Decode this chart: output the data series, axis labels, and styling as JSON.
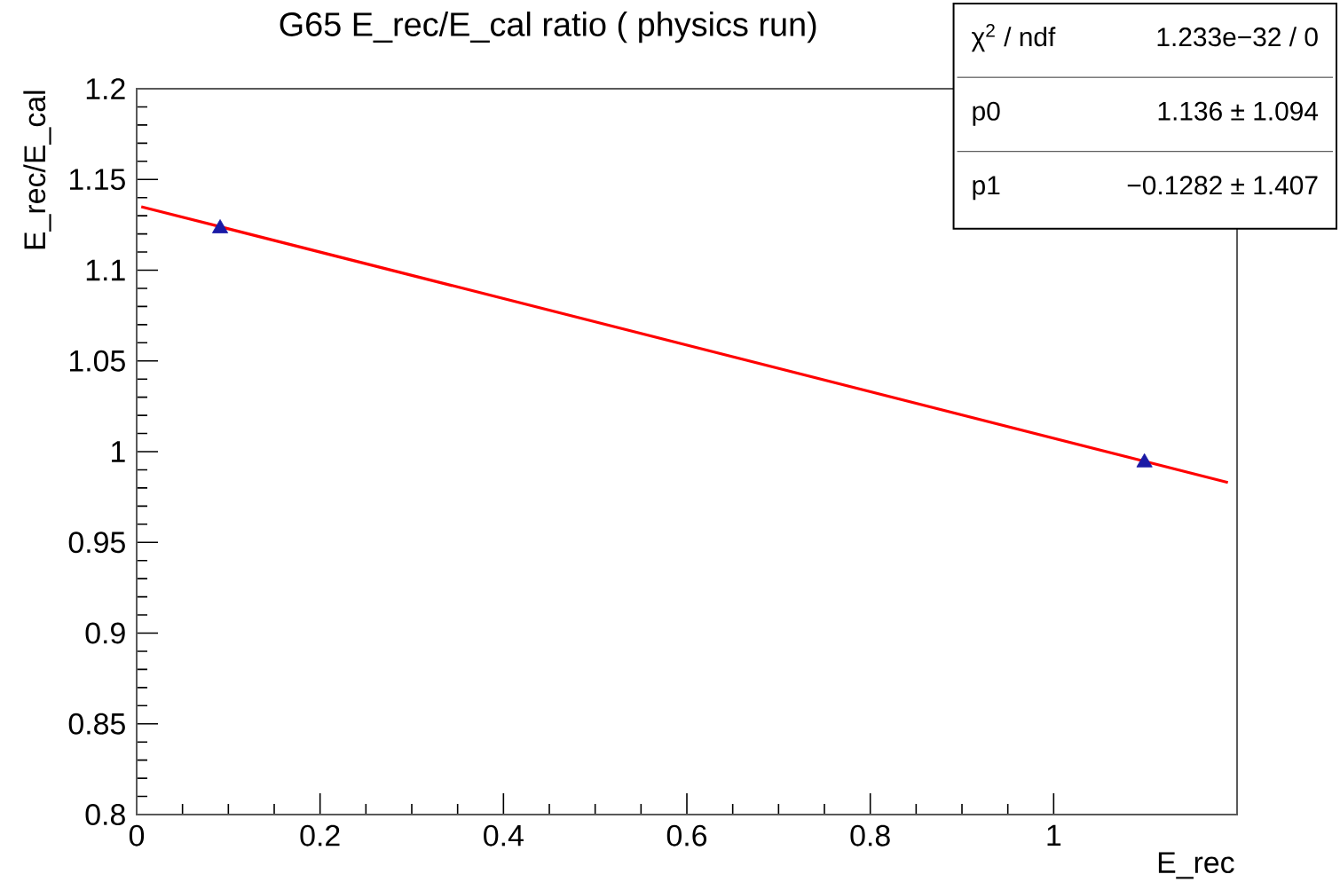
{
  "chart_data": {
    "type": "scatter",
    "title": "G65 E_rec/E_cal ratio ( physics run)",
    "xlabel": "E_rec",
    "ylabel": "E_rec/E_cal",
    "xlim": [
      0,
      1.2
    ],
    "ylim": [
      0.8,
      1.2
    ],
    "xticks": [
      0,
      0.2,
      0.4,
      0.6,
      0.8,
      1
    ],
    "yticks": [
      0.8,
      0.85,
      0.9,
      0.95,
      1,
      1.05,
      1.1,
      1.15,
      1.2
    ],
    "grid": false,
    "series": [
      {
        "color": "#1a1aa6",
        "marker": "triangle",
        "x": [
          0.091,
          1.099
        ],
        "values": [
          1.123,
          0.994
        ]
      },
      {
        "type": "line",
        "color": "#ff0000",
        "x": [
          0.005,
          1.19
        ],
        "values": [
          1.135,
          0.983
        ]
      }
    ],
    "annotations": [
      "χ$^{2}$ / ndf",
      "1.233e−32 / 0",
      "p0",
      "1.136 ± 1.094",
      "p1",
      "−0.1282 ± 1.407"
    ]
  }
}
